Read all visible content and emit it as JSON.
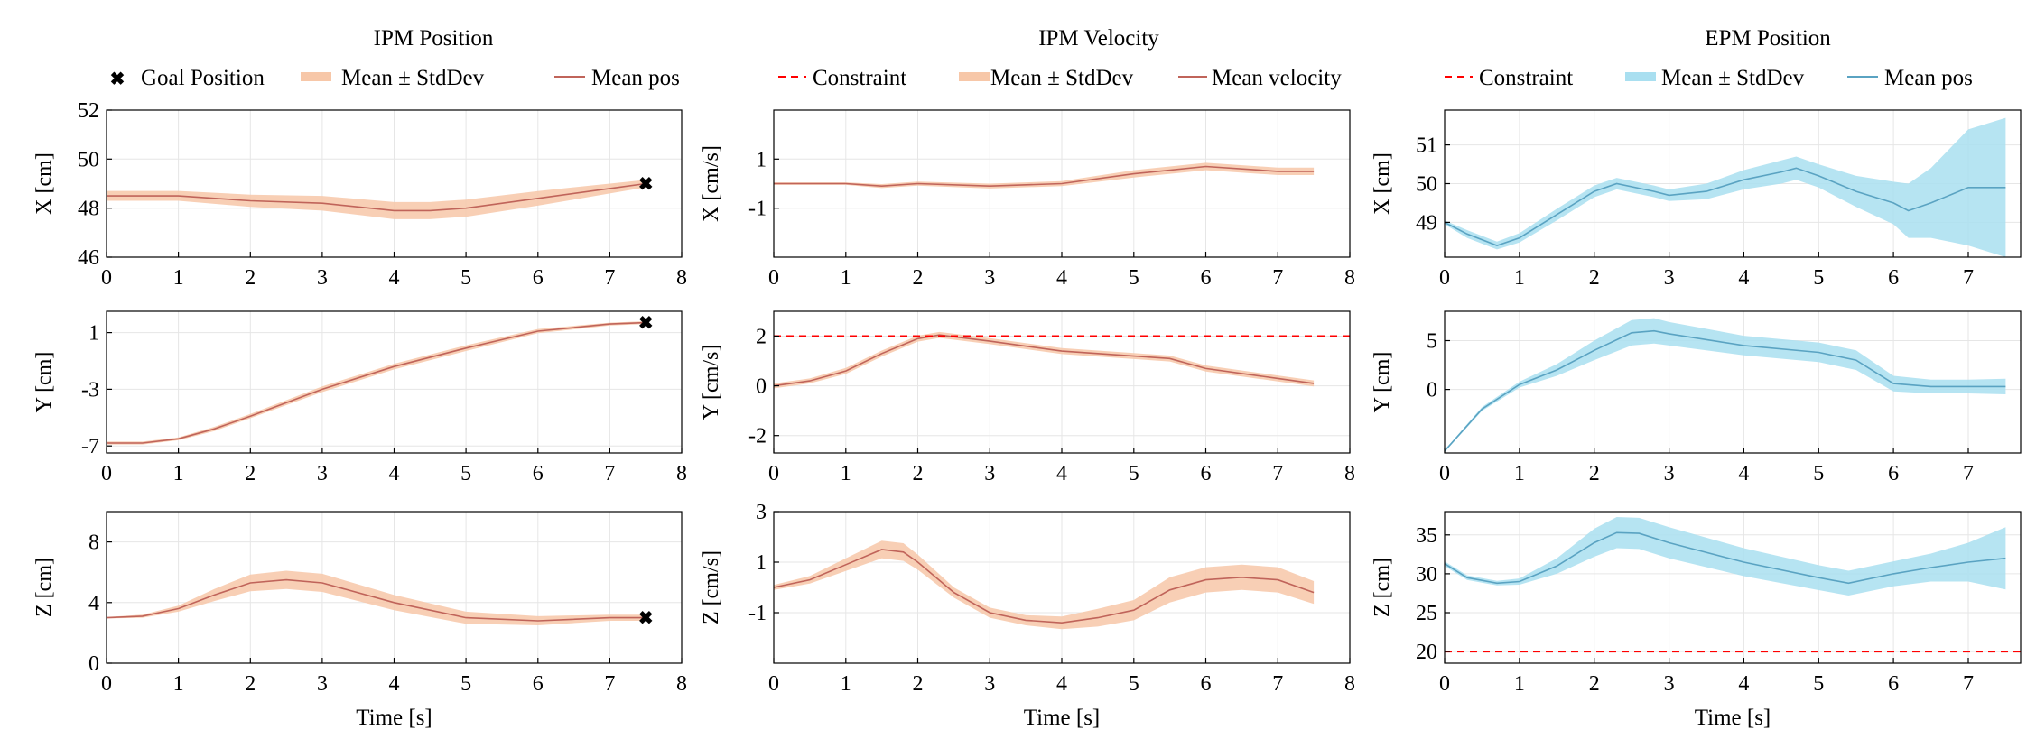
{
  "colors": {
    "ipm_band": "#f7c7a8",
    "ipm_line": "#c0645a",
    "epm_band": "#a9dff0",
    "epm_line": "#5aa3c2",
    "goal": "#ff0000",
    "constraint": "#ff0000",
    "grid": "#e6e6e6",
    "axis": "#000000"
  },
  "columns": [
    {
      "title": "IPM Position",
      "legend": [
        {
          "kind": "marker",
          "label": "Goal Position"
        },
        {
          "kind": "band",
          "label": "Mean ± StdDev"
        },
        {
          "kind": "line",
          "label": "Mean pos"
        }
      ],
      "theme": "ipm"
    },
    {
      "title": "IPM Velocity",
      "legend": [
        {
          "kind": "dashed",
          "label": "Constraint"
        },
        {
          "kind": "band",
          "label": "Mean ± StdDev"
        },
        {
          "kind": "line",
          "label": "Mean velocity"
        }
      ],
      "theme": "ipm"
    },
    {
      "title": "EPM Position",
      "legend": [
        {
          "kind": "dashed",
          "label": "Constraint"
        },
        {
          "kind": "band",
          "label": "Mean ± StdDev"
        },
        {
          "kind": "line",
          "label": "Mean pos"
        }
      ],
      "theme": "epm"
    }
  ],
  "xlabel": "Time [s]",
  "chart_data": [
    {
      "type": "line",
      "panel": "IPM Position X",
      "ylabel": "X [cm]",
      "xlim": [
        0,
        8
      ],
      "ylim": [
        46,
        52
      ],
      "xticks": [
        0,
        1,
        2,
        3,
        4,
        5,
        6,
        7,
        8
      ],
      "yticks": [
        46,
        48,
        50,
        52
      ],
      "x": [
        0,
        1,
        2,
        3,
        4,
        4.5,
        5,
        6,
        7,
        7.5
      ],
      "mean": [
        48.5,
        48.5,
        48.3,
        48.2,
        47.9,
        47.9,
        48.0,
        48.4,
        48.8,
        49.0
      ],
      "std": [
        0.2,
        0.2,
        0.25,
        0.3,
        0.35,
        0.35,
        0.35,
        0.3,
        0.2,
        0.15
      ],
      "goal": [
        7.5,
        49.0
      ]
    },
    {
      "type": "line",
      "panel": "IPM Position Y",
      "ylabel": "Y [cm]",
      "xlim": [
        0,
        8
      ],
      "ylim": [
        -7.5,
        2.5
      ],
      "xticks": [
        0,
        1,
        2,
        3,
        4,
        5,
        6,
        7,
        8
      ],
      "yticks": [
        -7,
        -3,
        1
      ],
      "x": [
        0,
        0.5,
        1,
        1.5,
        2,
        3,
        4,
        5,
        6,
        7,
        7.5
      ],
      "mean": [
        -6.8,
        -6.8,
        -6.5,
        -5.8,
        -4.9,
        -3.0,
        -1.4,
        -0.1,
        1.1,
        1.6,
        1.7
      ],
      "std": [
        0.1,
        0.1,
        0.1,
        0.15,
        0.15,
        0.2,
        0.2,
        0.2,
        0.15,
        0.1,
        0.1
      ],
      "goal": [
        7.5,
        1.7
      ]
    },
    {
      "type": "line",
      "panel": "IPM Position Z",
      "ylabel": "Z [cm]",
      "xlim": [
        0,
        8
      ],
      "ylim": [
        0,
        10
      ],
      "xticks": [
        0,
        1,
        2,
        3,
        4,
        5,
        6,
        7,
        8
      ],
      "yticks": [
        0,
        4,
        8
      ],
      "x": [
        0,
        0.5,
        1,
        1.5,
        2,
        2.5,
        3,
        4,
        5,
        6,
        7,
        7.5
      ],
      "mean": [
        3.0,
        3.1,
        3.6,
        4.5,
        5.3,
        5.5,
        5.3,
        4.0,
        3.0,
        2.8,
        3.0,
        3.0
      ],
      "std": [
        0.05,
        0.1,
        0.2,
        0.4,
        0.55,
        0.6,
        0.6,
        0.5,
        0.4,
        0.3,
        0.2,
        0.2
      ],
      "goal": [
        7.5,
        3.0
      ]
    },
    {
      "type": "line",
      "panel": "IPM Velocity X",
      "ylabel": "X [cm/s]",
      "xlim": [
        0,
        8
      ],
      "ylim": [
        -3,
        3
      ],
      "xticks": [
        0,
        1,
        2,
        3,
        4,
        5,
        6,
        7,
        8
      ],
      "yticks": [
        -1,
        1
      ],
      "x": [
        0,
        1,
        1.5,
        2,
        3,
        4,
        5,
        6,
        7,
        7.5
      ],
      "mean": [
        0.0,
        0.0,
        -0.1,
        0.0,
        -0.1,
        0.0,
        0.4,
        0.7,
        0.5,
        0.5
      ],
      "std": [
        0.05,
        0.05,
        0.08,
        0.08,
        0.1,
        0.1,
        0.15,
        0.15,
        0.15,
        0.15
      ]
    },
    {
      "type": "line",
      "panel": "IPM Velocity Y",
      "ylabel": "Y [cm/s]",
      "xlim": [
        0,
        8
      ],
      "ylim": [
        -2.7,
        3
      ],
      "xticks": [
        0,
        1,
        2,
        3,
        4,
        5,
        6,
        7,
        8
      ],
      "yticks": [
        -2,
        0,
        2
      ],
      "constraint": 2,
      "x": [
        0,
        0.5,
        1,
        1.5,
        2,
        2.3,
        3,
        4,
        5,
        5.5,
        6,
        7,
        7.5
      ],
      "mean": [
        0.0,
        0.2,
        0.6,
        1.3,
        1.9,
        2.05,
        1.8,
        1.4,
        1.2,
        1.1,
        0.7,
        0.3,
        0.1
      ],
      "std": [
        0.1,
        0.1,
        0.12,
        0.12,
        0.12,
        0.12,
        0.12,
        0.12,
        0.12,
        0.12,
        0.12,
        0.12,
        0.12
      ]
    },
    {
      "type": "line",
      "panel": "IPM Velocity Z",
      "ylabel": "Z [cm/s]",
      "xlim": [
        0,
        8
      ],
      "ylim": [
        -3,
        3
      ],
      "xticks": [
        0,
        1,
        2,
        3,
        4,
        5,
        6,
        7,
        8
      ],
      "yticks": [
        -1,
        1,
        3
      ],
      "x": [
        0,
        0.5,
        1,
        1.5,
        1.8,
        2,
        2.5,
        3,
        3.5,
        4,
        4.5,
        5,
        5.5,
        6,
        6.5,
        7,
        7.5
      ],
      "mean": [
        0.0,
        0.3,
        0.9,
        1.5,
        1.4,
        1.0,
        -0.2,
        -1.0,
        -1.3,
        -1.4,
        -1.2,
        -0.9,
        -0.1,
        0.3,
        0.4,
        0.3,
        -0.2
      ],
      "std": [
        0.1,
        0.15,
        0.25,
        0.35,
        0.35,
        0.3,
        0.2,
        0.2,
        0.2,
        0.25,
        0.35,
        0.4,
        0.5,
        0.5,
        0.5,
        0.5,
        0.45
      ]
    },
    {
      "type": "line",
      "panel": "EPM Position X",
      "ylabel": "X [cm]",
      "xlim": [
        0,
        7.7
      ],
      "ylim": [
        48.1,
        51.9
      ],
      "xticks": [
        0,
        1,
        2,
        3,
        4,
        5,
        6,
        7,
        8
      ],
      "yticks": [
        49,
        50,
        51
      ],
      "x": [
        0,
        0.3,
        0.7,
        1,
        1.5,
        2,
        2.3,
        2.8,
        3,
        3.5,
        4,
        4.5,
        4.7,
        5,
        5.5,
        6,
        6.2,
        6.5,
        7,
        7.5
      ],
      "mean": [
        49.0,
        48.7,
        48.4,
        48.6,
        49.2,
        49.8,
        50.0,
        49.8,
        49.7,
        49.8,
        50.1,
        50.3,
        50.4,
        50.2,
        49.8,
        49.5,
        49.3,
        49.5,
        49.9,
        49.9
      ],
      "std": [
        0.05,
        0.1,
        0.1,
        0.12,
        0.15,
        0.15,
        0.15,
        0.15,
        0.15,
        0.2,
        0.25,
        0.3,
        0.3,
        0.3,
        0.4,
        0.55,
        0.7,
        0.9,
        1.5,
        1.8
      ]
    },
    {
      "type": "line",
      "panel": "EPM Position Y",
      "ylabel": "Y [cm]",
      "xlim": [
        0,
        7.7
      ],
      "ylim": [
        -6.5,
        8
      ],
      "xticks": [
        0,
        1,
        2,
        3,
        4,
        5,
        6,
        7
      ],
      "yticks": [
        0,
        5
      ],
      "x": [
        0,
        0.5,
        1,
        1.5,
        2,
        2.5,
        2.8,
        3,
        4,
        5,
        5.5,
        6,
        6.5,
        7,
        7.5
      ],
      "mean": [
        -6.3,
        -2.0,
        0.5,
        2.0,
        4.0,
        5.8,
        6.0,
        5.7,
        4.5,
        3.8,
        3.0,
        0.6,
        0.3,
        0.3,
        0.3
      ],
      "std": [
        0.1,
        0.2,
        0.3,
        0.6,
        1.0,
        1.3,
        1.3,
        1.2,
        1.0,
        1.0,
        1.0,
        0.8,
        0.7,
        0.7,
        0.8
      ]
    },
    {
      "type": "line",
      "panel": "EPM Position Z",
      "ylabel": "Z [cm]",
      "xlim": [
        0,
        7.7
      ],
      "ylim": [
        18.5,
        38
      ],
      "xticks": [
        0,
        1,
        2,
        3,
        4,
        5,
        6,
        7
      ],
      "yticks": [
        20,
        25,
        30,
        35
      ],
      "constraint": 20,
      "x": [
        0,
        0.3,
        0.7,
        1,
        1.5,
        2,
        2.3,
        2.6,
        3,
        4,
        5,
        5.4,
        6,
        6.5,
        7,
        7.5
      ],
      "mean": [
        31.3,
        29.5,
        28.8,
        29.0,
        31.0,
        34.0,
        35.3,
        35.2,
        34.0,
        31.5,
        29.5,
        28.8,
        30.0,
        30.8,
        31.5,
        32.0
      ],
      "std": [
        0.3,
        0.3,
        0.3,
        0.4,
        1.0,
        1.8,
        2.0,
        2.0,
        2.0,
        1.8,
        1.6,
        1.6,
        1.6,
        1.8,
        2.5,
        4.0
      ]
    }
  ]
}
